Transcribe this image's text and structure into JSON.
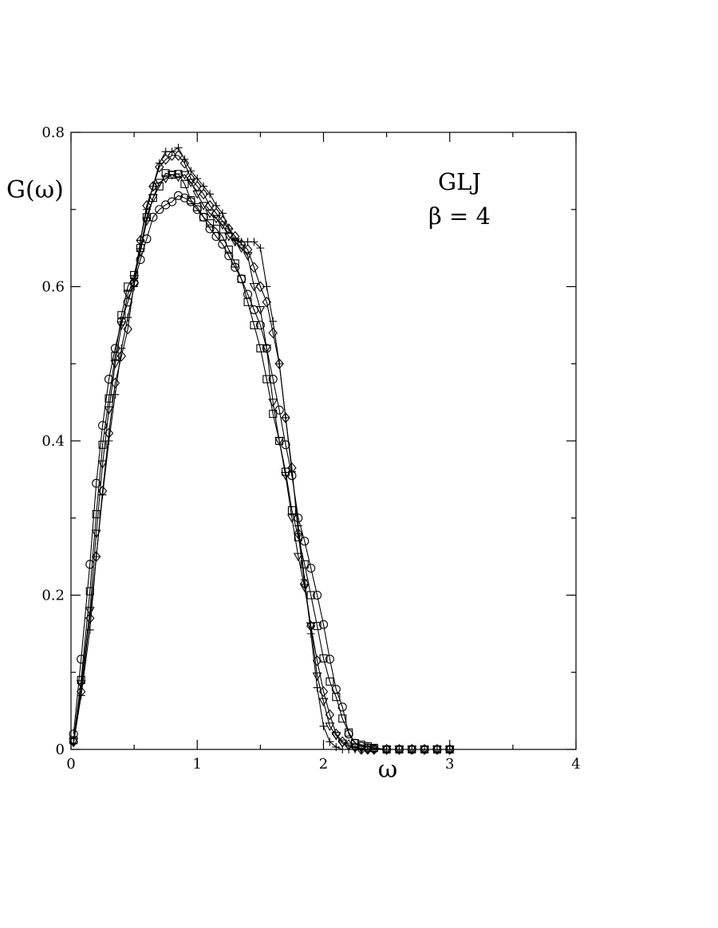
{
  "chart_data": {
    "type": "line",
    "xlabel": "ω",
    "ylabel": "G(ω)",
    "xlim": [
      0,
      4
    ],
    "ylim": [
      0,
      0.8
    ],
    "xticks": [
      0,
      1,
      2,
      3,
      4
    ],
    "xtick_labels": [
      "0",
      "1",
      "2",
      "3",
      "4"
    ],
    "yticks": [
      0,
      0.2,
      0.4,
      0.6,
      0.8
    ],
    "ytick_labels": [
      "0",
      "0.2",
      "0.4",
      "0.6",
      "0.8"
    ],
    "grid": false,
    "annotation": {
      "line1": "GLJ",
      "line2": "β = 4"
    },
    "series": [
      {
        "marker": "circle",
        "x": [
          0.02,
          0.08,
          0.15,
          0.2,
          0.25,
          0.3,
          0.35,
          0.4,
          0.45,
          0.5,
          0.55,
          0.6,
          0.65,
          0.7,
          0.75,
          0.8,
          0.85,
          0.9,
          0.95,
          1.0,
          1.05,
          1.1,
          1.15,
          1.2,
          1.25,
          1.3,
          1.35,
          1.4,
          1.45,
          1.5,
          1.55,
          1.6,
          1.65,
          1.7,
          1.75,
          1.8,
          1.85,
          1.9,
          1.95,
          2.0,
          2.05,
          2.1,
          2.15,
          2.2,
          2.25,
          2.3,
          2.35,
          2.4,
          2.5,
          2.6,
          2.7,
          2.8,
          2.9,
          3.0
        ],
        "y": [
          0.02,
          0.117,
          0.24,
          0.345,
          0.42,
          0.48,
          0.52,
          0.555,
          0.58,
          0.605,
          0.635,
          0.662,
          0.69,
          0.7,
          0.706,
          0.71,
          0.718,
          0.715,
          0.71,
          0.7,
          0.69,
          0.675,
          0.665,
          0.655,
          0.64,
          0.625,
          0.61,
          0.59,
          0.57,
          0.55,
          0.52,
          0.48,
          0.44,
          0.395,
          0.355,
          0.3,
          0.27,
          0.235,
          0.2,
          0.162,
          0.117,
          0.078,
          0.055,
          0.02,
          0.008,
          0.004,
          0.002,
          0.001,
          0.0,
          0.0,
          0.0,
          0.0,
          0.0,
          0.0
        ]
      },
      {
        "marker": "square",
        "x": [
          0.02,
          0.08,
          0.15,
          0.2,
          0.25,
          0.3,
          0.35,
          0.4,
          0.45,
          0.5,
          0.55,
          0.6,
          0.65,
          0.7,
          0.75,
          0.8,
          0.85,
          0.9,
          0.95,
          1.0,
          1.05,
          1.1,
          1.15,
          1.2,
          1.25,
          1.3,
          1.35,
          1.4,
          1.45,
          1.5,
          1.55,
          1.6,
          1.65,
          1.7,
          1.75,
          1.8,
          1.85,
          1.9,
          1.95,
          2.0,
          2.05,
          2.1,
          2.15,
          2.2,
          2.25,
          2.3,
          2.35,
          2.4,
          2.5,
          2.6,
          2.7,
          2.8,
          2.9,
          3.0
        ],
        "y": [
          0.012,
          0.09,
          0.205,
          0.305,
          0.395,
          0.455,
          0.51,
          0.563,
          0.6,
          0.615,
          0.65,
          0.69,
          0.715,
          0.73,
          0.747,
          0.745,
          0.746,
          0.733,
          0.712,
          0.703,
          0.69,
          0.682,
          0.675,
          0.665,
          0.648,
          0.63,
          0.61,
          0.58,
          0.55,
          0.52,
          0.48,
          0.435,
          0.4,
          0.36,
          0.31,
          0.275,
          0.24,
          0.2,
          0.16,
          0.118,
          0.088,
          0.068,
          0.04,
          0.022,
          0.008,
          0.006,
          0.004,
          0.002,
          0.0,
          0.0,
          0.0,
          0.0,
          0.0,
          0.0
        ]
      },
      {
        "marker": "triangle-down",
        "x": [
          0.02,
          0.08,
          0.15,
          0.2,
          0.25,
          0.3,
          0.35,
          0.4,
          0.45,
          0.5,
          0.55,
          0.6,
          0.65,
          0.7,
          0.75,
          0.8,
          0.85,
          0.9,
          0.95,
          1.0,
          1.05,
          1.1,
          1.15,
          1.2,
          1.25,
          1.3,
          1.35,
          1.4,
          1.45,
          1.5,
          1.55,
          1.6,
          1.65,
          1.7,
          1.75,
          1.8,
          1.85,
          1.9,
          1.95,
          2.0,
          2.05,
          2.1,
          2.15,
          2.2,
          2.25,
          2.3,
          2.35,
          2.4,
          2.5,
          2.6,
          2.7,
          2.8,
          2.9,
          3.0
        ],
        "y": [
          0.01,
          0.085,
          0.18,
          0.28,
          0.37,
          0.44,
          0.5,
          0.55,
          0.59,
          0.61,
          0.645,
          0.685,
          0.715,
          0.735,
          0.74,
          0.745,
          0.742,
          0.745,
          0.735,
          0.72,
          0.705,
          0.695,
          0.688,
          0.68,
          0.665,
          0.658,
          0.65,
          0.64,
          0.6,
          0.57,
          0.52,
          0.45,
          0.4,
          0.355,
          0.3,
          0.25,
          0.21,
          0.16,
          0.095,
          0.062,
          0.03,
          0.018,
          0.008,
          0.004,
          0.002,
          0.001,
          0.0,
          0.0,
          0.0,
          0.0,
          0.0,
          0.0,
          0.0,
          0.0
        ]
      },
      {
        "marker": "diamond",
        "x": [
          0.02,
          0.08,
          0.15,
          0.2,
          0.25,
          0.3,
          0.35,
          0.4,
          0.45,
          0.5,
          0.55,
          0.6,
          0.65,
          0.7,
          0.75,
          0.8,
          0.85,
          0.9,
          0.95,
          1.0,
          1.05,
          1.1,
          1.15,
          1.2,
          1.25,
          1.3,
          1.35,
          1.4,
          1.45,
          1.5,
          1.55,
          1.6,
          1.65,
          1.7,
          1.75,
          1.8,
          1.85,
          1.9,
          1.95,
          2.0,
          2.05,
          2.1,
          2.15,
          2.2,
          2.25,
          2.3,
          2.35,
          2.4,
          2.5,
          2.6,
          2.7,
          2.8,
          2.9,
          3.0
        ],
        "y": [
          0.01,
          0.075,
          0.17,
          0.25,
          0.335,
          0.41,
          0.475,
          0.51,
          0.545,
          0.605,
          0.66,
          0.705,
          0.73,
          0.755,
          0.765,
          0.77,
          0.77,
          0.76,
          0.74,
          0.73,
          0.72,
          0.705,
          0.695,
          0.685,
          0.675,
          0.665,
          0.655,
          0.648,
          0.625,
          0.6,
          0.58,
          0.54,
          0.5,
          0.43,
          0.365,
          0.28,
          0.215,
          0.16,
          0.115,
          0.075,
          0.045,
          0.02,
          0.01,
          0.006,
          0.003,
          0.0,
          0.0,
          0.0,
          0.0,
          0.0,
          0.0,
          0.0,
          0.0,
          0.0
        ]
      },
      {
        "marker": "plus",
        "x": [
          0.02,
          0.08,
          0.15,
          0.2,
          0.25,
          0.3,
          0.35,
          0.4,
          0.45,
          0.5,
          0.55,
          0.6,
          0.65,
          0.7,
          0.75,
          0.8,
          0.85,
          0.9,
          0.95,
          1.0,
          1.05,
          1.1,
          1.15,
          1.2,
          1.25,
          1.3,
          1.35,
          1.4,
          1.45,
          1.5,
          1.55,
          1.6,
          1.65,
          1.7,
          1.75,
          1.8,
          1.85,
          1.9,
          1.95,
          2.0,
          2.05,
          2.1,
          2.15,
          2.2,
          2.25,
          2.3,
          2.35,
          2.4,
          2.5,
          2.6,
          2.7,
          2.8,
          2.9,
          3.0
        ],
        "y": [
          0.008,
          0.07,
          0.155,
          0.25,
          0.33,
          0.4,
          0.46,
          0.52,
          0.56,
          0.6,
          0.66,
          0.7,
          0.73,
          0.76,
          0.775,
          0.775,
          0.78,
          0.765,
          0.75,
          0.74,
          0.73,
          0.72,
          0.705,
          0.695,
          0.675,
          0.66,
          0.658,
          0.658,
          0.658,
          0.65,
          0.6,
          0.555,
          0.5,
          0.43,
          0.36,
          0.29,
          0.22,
          0.15,
          0.08,
          0.03,
          0.01,
          0.003,
          0.0,
          0.0,
          0.0,
          0.0,
          0.0,
          0.0,
          0.0,
          0.0,
          0.0,
          0.0,
          0.0,
          0.0
        ]
      }
    ]
  }
}
